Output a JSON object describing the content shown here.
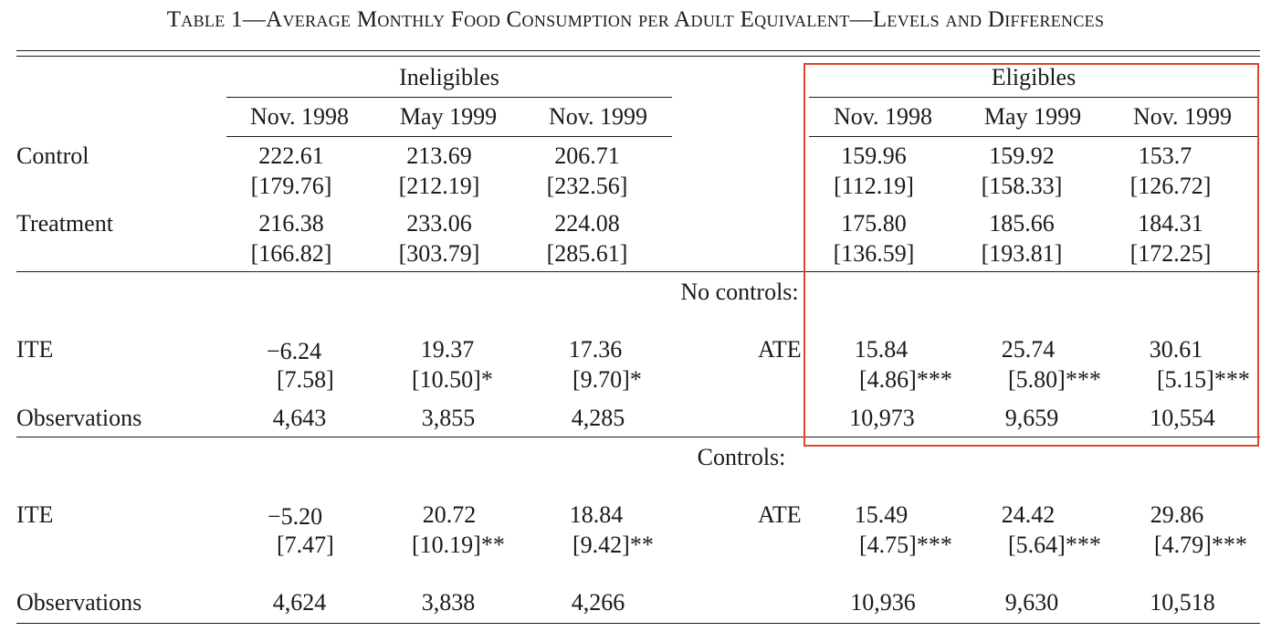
{
  "title": "Table 1—Average Monthly Food Consumption per Adult Equivalent—Levels and Differences",
  "groups": {
    "ineligibles": "Ineligibles",
    "eligibles": "Eligibles"
  },
  "columns": {
    "c1": "Nov. 1998",
    "c2": "May 1999",
    "c3": "Nov. 1999"
  },
  "levels": {
    "control": {
      "label": "Control",
      "inel": [
        "222.61",
        "213.69",
        "206.71"
      ],
      "inel_sd": [
        "[179.76]",
        "[212.19]",
        "[232.56]"
      ],
      "elig": [
        "159.96",
        "159.92",
        "153.7"
      ],
      "elig_sd": [
        "[112.19]",
        "[158.33]",
        "[126.72]"
      ]
    },
    "treatment": {
      "label": "Treatment",
      "inel": [
        "216.38",
        "233.06",
        "224.08"
      ],
      "inel_sd": [
        "[166.82]",
        "[303.79]",
        "[285.61]"
      ],
      "elig": [
        "175.80",
        "185.66",
        "184.31"
      ],
      "elig_sd": [
        "[136.59]",
        "[193.81]",
        "[172.25]"
      ]
    }
  },
  "no_controls": {
    "heading": "No controls:",
    "ite_label": "ITE",
    "ate_label": "ATE",
    "ite": [
      "−6.24",
      "19.37",
      "17.36"
    ],
    "ite_se": [
      "[7.58]",
      "[10.50]*",
      "[9.70]*"
    ],
    "ate": [
      "15.84",
      "25.74",
      "30.61"
    ],
    "ate_se": [
      "[4.86]***",
      "[5.80]***",
      "[5.15]***"
    ],
    "obs_label": "Observations",
    "obs_inel": [
      "4,643",
      "3,855",
      "4,285"
    ],
    "obs_elig": [
      "10,973",
      "9,659",
      "10,554"
    ]
  },
  "controls": {
    "heading": "Controls:",
    "ite_label": "ITE",
    "ate_label": "ATE",
    "ite": [
      "−5.20",
      "20.72",
      "18.84"
    ],
    "ite_se": [
      "[7.47]",
      "[10.19]**",
      "[9.42]**"
    ],
    "ate": [
      "15.49",
      "24.42",
      "29.86"
    ],
    "ate_se": [
      "[4.75]***",
      "[5.64]***",
      "[4.79]***"
    ],
    "obs_label": "Observations",
    "obs_inel": [
      "4,624",
      "3,838",
      "4,266"
    ],
    "obs_elig": [
      "10,936",
      "9,630",
      "10,518"
    ]
  },
  "highlight_color": "#e0452e"
}
